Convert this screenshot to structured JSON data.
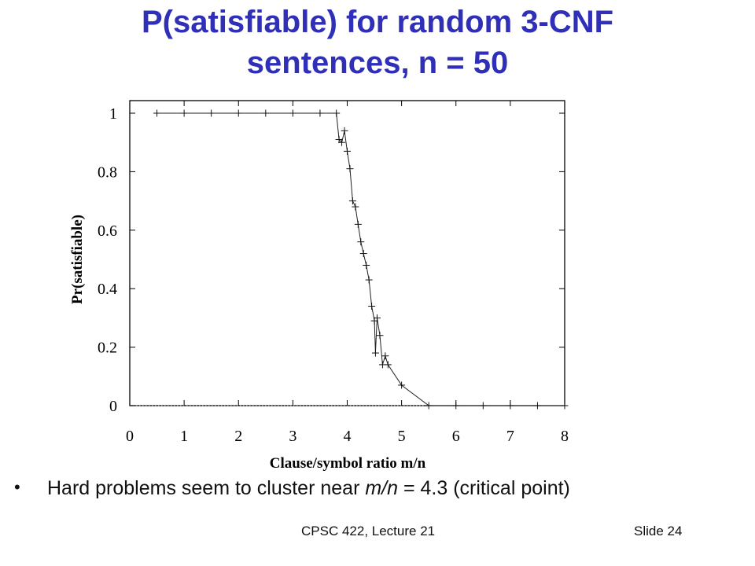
{
  "slide": {
    "title_line1": "P(satisfiable) for random 3-CNF",
    "title_line2": "sentences, n = 50",
    "bullet": {
      "prefix": "Hard problems seem to cluster near ",
      "emph": "m/n",
      "suffix": " = 4.3 (critical point)"
    },
    "footer_center": "CPSC 422, Lecture 21",
    "footer_right": "Slide 24",
    "title_color": "#2f2fb8"
  },
  "chart_data": {
    "type": "line",
    "xlabel": "Clause/symbol ratio m/n",
    "ylabel": "Pr(satisfiable)",
    "xlim": [
      0,
      8
    ],
    "ylim": [
      0,
      1
    ],
    "xticks": [
      "0",
      "1",
      "2",
      "3",
      "4",
      "5",
      "6",
      "7",
      "8"
    ],
    "yticks": [
      "0",
      "0.2",
      "0.4",
      "0.6",
      "0.8",
      "1"
    ],
    "reference_line": {
      "y": 0,
      "style": "dotted"
    },
    "series": [
      {
        "marker": "+",
        "x": [
          0.5,
          1.0,
          1.5,
          2.0,
          2.5,
          3.0,
          3.5,
          3.8,
          3.85,
          3.9,
          3.95,
          4.0,
          4.05,
          4.1,
          4.15,
          4.2,
          4.25,
          4.3,
          4.35,
          4.4,
          4.45,
          4.5,
          4.52,
          4.55,
          4.6,
          4.65,
          4.7,
          4.75,
          5.0,
          5.5,
          6.0,
          6.5,
          7.0,
          7.5,
          8.0
        ],
        "y": [
          1.0,
          1.0,
          1.0,
          1.0,
          1.0,
          1.0,
          1.0,
          1.0,
          0.91,
          0.9,
          0.94,
          0.87,
          0.81,
          0.7,
          0.68,
          0.62,
          0.56,
          0.52,
          0.48,
          0.43,
          0.34,
          0.29,
          0.18,
          0.3,
          0.24,
          0.14,
          0.17,
          0.14,
          0.07,
          0.0,
          0.0,
          0.0,
          0.0,
          0.0,
          0.0
        ]
      }
    ]
  }
}
